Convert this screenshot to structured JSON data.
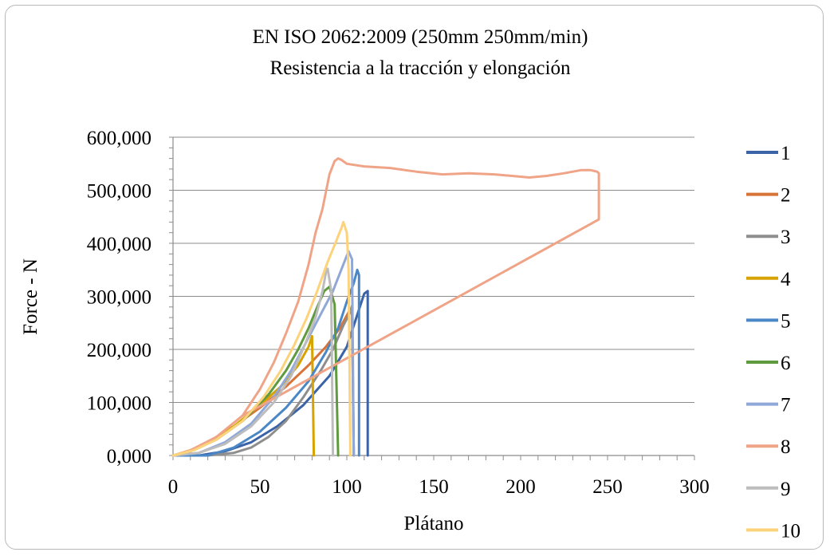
{
  "chart_data": {
    "type": "line",
    "title": "EN ISO 2062:2009 (250mm 250mm/min)",
    "subtitle": "Resistencia a la tracción y elongación",
    "xlabel": "Plátano",
    "ylabel": "Force - N",
    "xlim": [
      0,
      300
    ],
    "ylim": [
      0,
      600
    ],
    "x_ticks": [
      "0",
      "50",
      "100",
      "150",
      "200",
      "250",
      "300"
    ],
    "y_ticks": [
      "0,000",
      "100,000",
      "200,000",
      "300,000",
      "400,000",
      "500,000",
      "600,000"
    ],
    "grid": "horizontal",
    "legend_position": "right",
    "series": [
      {
        "name": "1",
        "color": "#3b64a8",
        "points": [
          [
            0,
            0
          ],
          [
            15,
            0
          ],
          [
            30,
            8
          ],
          [
            45,
            25
          ],
          [
            60,
            55
          ],
          [
            75,
            95
          ],
          [
            90,
            150
          ],
          [
            100,
            205
          ],
          [
            105,
            255
          ],
          [
            108,
            285
          ],
          [
            110,
            305
          ],
          [
            112,
            310
          ],
          [
            112,
            0
          ]
        ]
      },
      {
        "name": "2",
        "color": "#d8743a",
        "points": [
          [
            0,
            0
          ],
          [
            10,
            8
          ],
          [
            20,
            25
          ],
          [
            35,
            55
          ],
          [
            50,
            90
          ],
          [
            65,
            130
          ],
          [
            78,
            170
          ],
          [
            88,
            205
          ],
          [
            96,
            240
          ],
          [
            101,
            270
          ],
          [
            103,
            280
          ],
          [
            104,
            0
          ]
        ]
      },
      {
        "name": "3",
        "color": "#8e8e8e",
        "points": [
          [
            0,
            0
          ],
          [
            20,
            0
          ],
          [
            35,
            5
          ],
          [
            45,
            15
          ],
          [
            55,
            35
          ],
          [
            65,
            65
          ],
          [
            75,
            110
          ],
          [
            85,
            160
          ],
          [
            92,
            200
          ],
          [
            98,
            245
          ],
          [
            102,
            270
          ],
          [
            103,
            282
          ],
          [
            104,
            0
          ]
        ]
      },
      {
        "name": "4",
        "color": "#d6a300",
        "points": [
          [
            0,
            0
          ],
          [
            10,
            10
          ],
          [
            20,
            25
          ],
          [
            35,
            55
          ],
          [
            50,
            95
          ],
          [
            62,
            130
          ],
          [
            72,
            170
          ],
          [
            78,
            205
          ],
          [
            80,
            225
          ],
          [
            81,
            0
          ]
        ]
      },
      {
        "name": "5",
        "color": "#4a87c6",
        "points": [
          [
            0,
            0
          ],
          [
            20,
            0
          ],
          [
            35,
            15
          ],
          [
            50,
            45
          ],
          [
            65,
            90
          ],
          [
            78,
            140
          ],
          [
            88,
            195
          ],
          [
            95,
            240
          ],
          [
            100,
            290
          ],
          [
            104,
            325
          ],
          [
            106,
            350
          ],
          [
            107,
            340
          ],
          [
            107,
            0
          ]
        ]
      },
      {
        "name": "6",
        "color": "#5f9a3e",
        "points": [
          [
            0,
            0
          ],
          [
            10,
            8
          ],
          [
            25,
            30
          ],
          [
            40,
            65
          ],
          [
            55,
            115
          ],
          [
            65,
            160
          ],
          [
            72,
            200
          ],
          [
            78,
            240
          ],
          [
            83,
            280
          ],
          [
            87,
            310
          ],
          [
            90,
            318
          ],
          [
            93,
            285
          ],
          [
            95,
            0
          ]
        ]
      },
      {
        "name": "7",
        "color": "#8fa8d8",
        "points": [
          [
            0,
            0
          ],
          [
            15,
            5
          ],
          [
            30,
            25
          ],
          [
            45,
            60
          ],
          [
            58,
            110
          ],
          [
            68,
            160
          ],
          [
            76,
            210
          ],
          [
            84,
            260
          ],
          [
            92,
            310
          ],
          [
            98,
            360
          ],
          [
            101,
            385
          ],
          [
            103,
            370
          ],
          [
            104,
            0
          ]
        ]
      },
      {
        "name": "8",
        "color": "#f0a487",
        "points": [
          [
            0,
            0
          ],
          [
            10,
            10
          ],
          [
            25,
            35
          ],
          [
            40,
            75
          ],
          [
            50,
            125
          ],
          [
            58,
            175
          ],
          [
            65,
            230
          ],
          [
            72,
            290
          ],
          [
            78,
            360
          ],
          [
            82,
            420
          ],
          [
            86,
            465
          ],
          [
            90,
            530
          ],
          [
            93,
            555
          ],
          [
            95,
            560
          ],
          [
            97,
            557
          ],
          [
            100,
            550
          ],
          [
            110,
            545
          ],
          [
            125,
            542
          ],
          [
            140,
            535
          ],
          [
            155,
            530
          ],
          [
            170,
            532
          ],
          [
            185,
            530
          ],
          [
            195,
            527
          ],
          [
            205,
            524
          ],
          [
            215,
            527
          ],
          [
            225,
            532
          ],
          [
            235,
            538
          ],
          [
            240,
            538
          ],
          [
            244,
            535
          ],
          [
            245,
            532
          ],
          [
            245,
            445
          ],
          [
            40,
            75
          ]
        ]
      },
      {
        "name": "9",
        "color": "#bdbdbd",
        "points": [
          [
            0,
            0
          ],
          [
            15,
            5
          ],
          [
            30,
            22
          ],
          [
            45,
            55
          ],
          [
            58,
            100
          ],
          [
            68,
            150
          ],
          [
            76,
            210
          ],
          [
            82,
            260
          ],
          [
            86,
            310
          ],
          [
            88,
            345
          ],
          [
            89,
            352
          ],
          [
            91,
            310
          ],
          [
            92,
            0
          ]
        ]
      },
      {
        "name": "10",
        "color": "#fcd27a",
        "points": [
          [
            0,
            0
          ],
          [
            12,
            10
          ],
          [
            25,
            30
          ],
          [
            40,
            65
          ],
          [
            52,
            110
          ],
          [
            62,
            160
          ],
          [
            70,
            210
          ],
          [
            77,
            260
          ],
          [
            83,
            310
          ],
          [
            89,
            365
          ],
          [
            94,
            405
          ],
          [
            97,
            430
          ],
          [
            98,
            440
          ],
          [
            100,
            420
          ],
          [
            101,
            350
          ],
          [
            102,
            0
          ]
        ]
      }
    ]
  }
}
